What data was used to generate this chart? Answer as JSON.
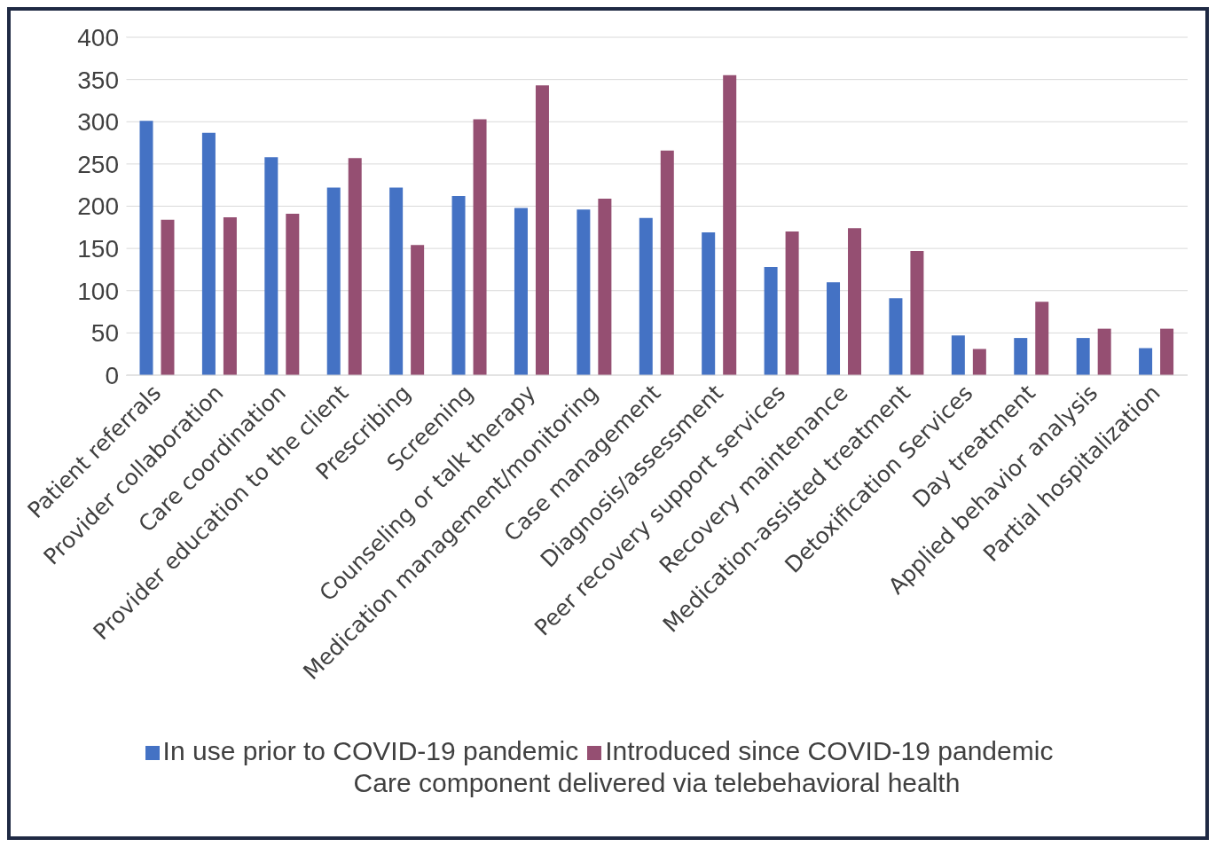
{
  "chart_data": {
    "type": "bar",
    "xlabel": "Care component delivered via telebehavioral health",
    "categories": [
      "Patient referrals",
      "Provider collaboration",
      "Care coordination",
      "Provider education to the client",
      "Prescribing",
      "Screening",
      "Counseling or talk therapy",
      "Medication management/monitoring",
      "Case management",
      "Diagnosis/assessment",
      "Peer recovery support services",
      "Recovery maintenance",
      "Medication-assisted treatment",
      "Detoxification Services",
      "Day treatment",
      "Applied behavior analysis",
      "Partial hospitalization"
    ],
    "series": [
      {
        "name": "In use prior to COVID-19 pandemic",
        "color": "#4472c4",
        "values": [
          301,
          287,
          258,
          222,
          222,
          212,
          198,
          196,
          186,
          169,
          128,
          110,
          91,
          47,
          44,
          44,
          32
        ]
      },
      {
        "name": "Introduced since COVID-19 pandemic",
        "color": "#954f72",
        "values": [
          184,
          187,
          191,
          257,
          154,
          303,
          343,
          209,
          266,
          355,
          170,
          174,
          147,
          31,
          87,
          55,
          55
        ]
      }
    ],
    "ylim": [
      0,
      400
    ],
    "yticks": [
      0,
      50,
      100,
      150,
      200,
      250,
      300,
      350,
      400
    ],
    "grid": "y",
    "legend": "bottom"
  }
}
